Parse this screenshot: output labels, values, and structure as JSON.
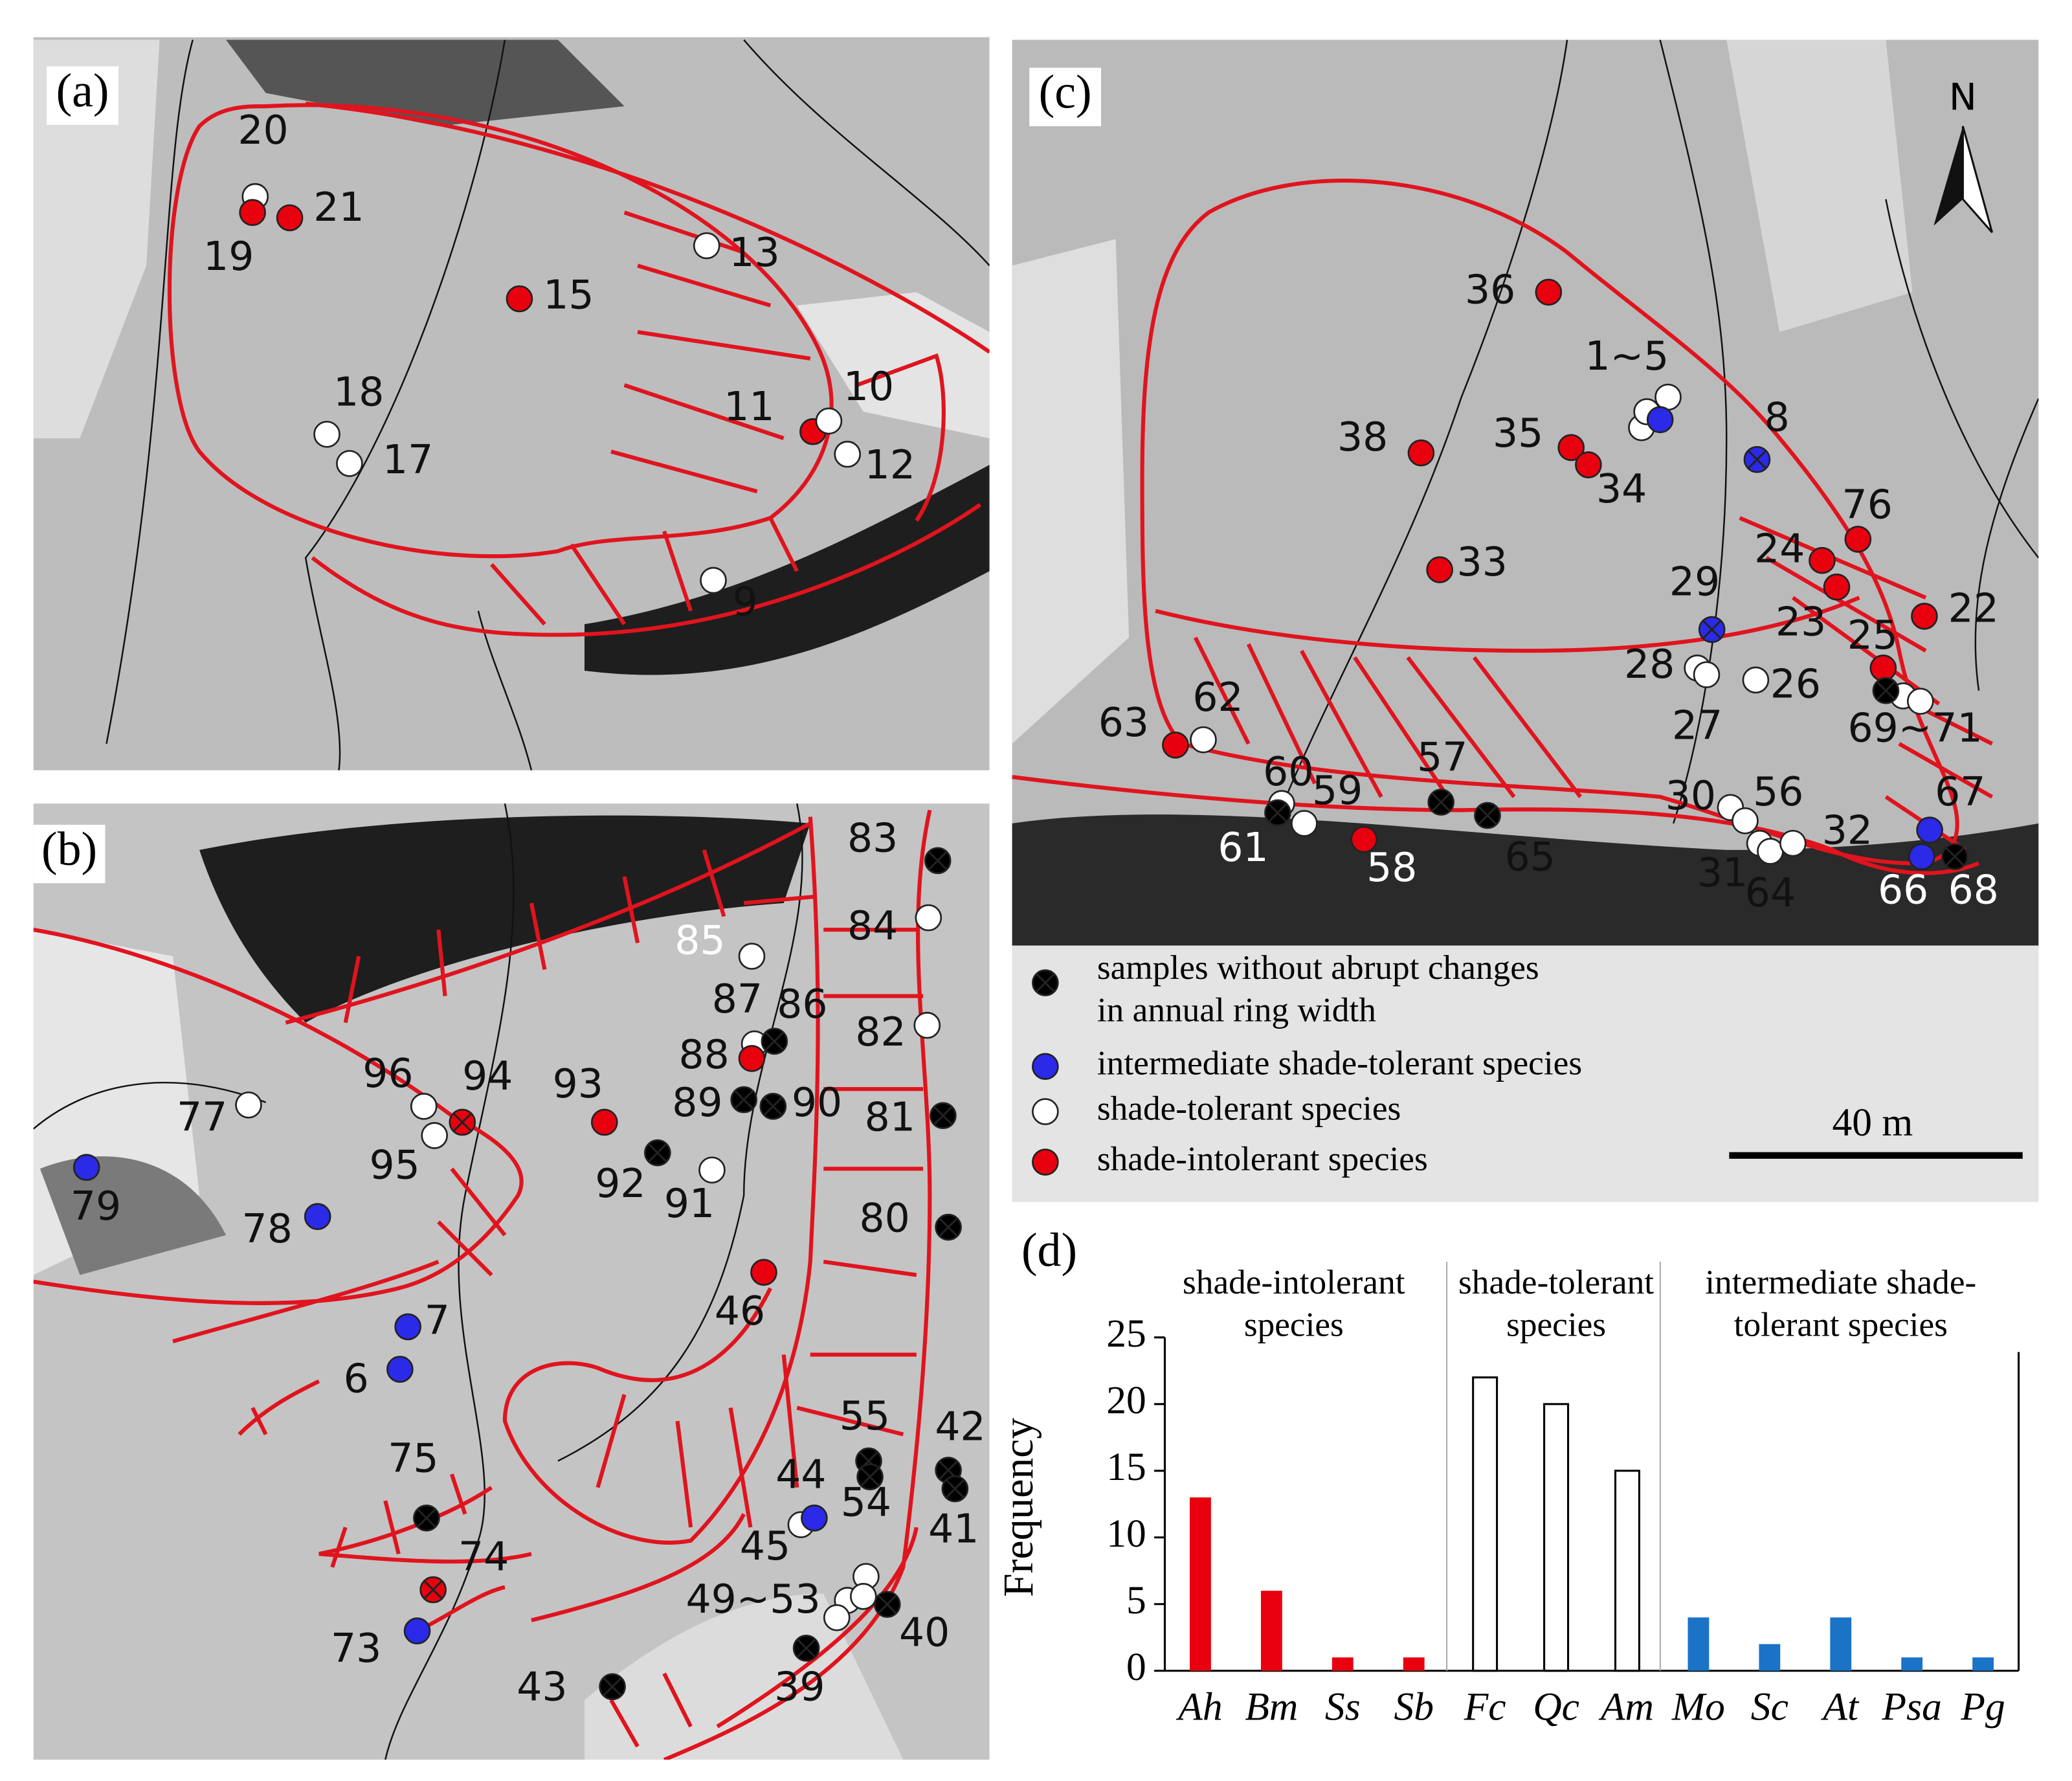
{
  "panels": [
    {
      "label": "(a)",
      "points": [
        "20",
        "21",
        "19",
        "13",
        "15",
        "18",
        "17",
        "11",
        "10",
        "12",
        "9"
      ]
    },
    {
      "label": "(b)",
      "points": [
        "83",
        "85",
        "84",
        "87",
        "86",
        "88",
        "82",
        "96",
        "94",
        "93",
        "89",
        "90",
        "81",
        "77",
        "95",
        "92",
        "91",
        "79",
        "80",
        "78",
        "46",
        "7",
        "6",
        "55",
        "42",
        "75",
        "44",
        "54",
        "41",
        "45",
        "74",
        "49~53",
        "40",
        "73",
        "39",
        "43"
      ]
    },
    {
      "label": "(c)",
      "points": [
        "36",
        "1~5",
        "38",
        "35",
        "8",
        "34",
        "76",
        "24",
        "33",
        "29",
        "22",
        "23",
        "25",
        "28",
        "26",
        "27",
        "62",
        "63",
        "69~71",
        "57",
        "60",
        "59",
        "30",
        "56",
        "67",
        "32",
        "61",
        "58",
        "65",
        "31",
        "64",
        "66",
        "68"
      ]
    }
  ],
  "north": "N",
  "legend": [
    [
      "samples without abrupt changes",
      "in annual ring width"
    ],
    [
      "intermediate shade-tolerant species"
    ],
    [
      "shade-tolerant species"
    ],
    [
      "shade-intolerant species"
    ]
  ],
  "scale_bar": "40 m",
  "chart_data": {
    "type": "bar",
    "panel_label": "(d)",
    "y_label": "Frequency",
    "groups": [
      [
        "shade-intolerant",
        "species"
      ],
      [
        "shade-tolerant",
        "species"
      ],
      [
        "intermediate shade-",
        "tolerant species"
      ]
    ],
    "categories": [
      "Ah",
      "Bm",
      "Ss",
      "Sb",
      "Fc",
      "Qc",
      "Am",
      "Mo",
      "Sc",
      "At",
      "Psa",
      "Pg"
    ],
    "values": [
      13,
      6,
      1,
      1,
      22,
      20,
      15,
      4,
      2,
      4,
      1,
      1
    ],
    "colors": [
      "#e8000f",
      "#e8000f",
      "#e8000f",
      "#e8000f",
      "#ffffff",
      "#ffffff",
      "#ffffff",
      "#1a73c6",
      "#1a73c6",
      "#1a73c6",
      "#1a73c6",
      "#1a73c6"
    ],
    "ylim": [
      0,
      25
    ],
    "yticks": [
      0,
      5,
      10,
      15,
      20,
      25
    ]
  }
}
